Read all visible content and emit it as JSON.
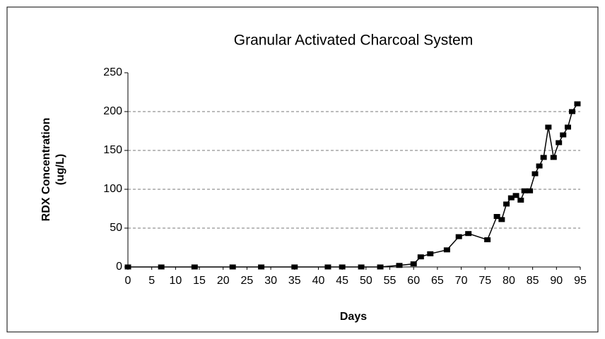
{
  "chart_data": {
    "type": "line",
    "title": "Granular Activated Charcoal System",
    "x_label": "Days",
    "y_label": [
      "RDX Concentration",
      "(ug/L)"
    ],
    "x": [
      0,
      7,
      14,
      22,
      28,
      35,
      42,
      45,
      49,
      53,
      57,
      60,
      61.5,
      63.5,
      67,
      69.5,
      71.5,
      75.5,
      77.5,
      78.5,
      79.5,
      80.5,
      81.5,
      82.5,
      83.3,
      84.4,
      85.5,
      86.4,
      87.3,
      88.3,
      89.4,
      90.5,
      91.4,
      92.4,
      93.3,
      94.4
    ],
    "series": [
      {
        "name": "RDX",
        "color": "#000000",
        "values": [
          0,
          0,
          0,
          0,
          0,
          0,
          0,
          0,
          0,
          0,
          2,
          4,
          13,
          17,
          22,
          39,
          43,
          35,
          65,
          61,
          81,
          89,
          92,
          86,
          98,
          98,
          120,
          130,
          141,
          180,
          141,
          160,
          170,
          180,
          200,
          210
        ]
      }
    ],
    "xlim": [
      0,
      95
    ],
    "xticks": [
      0,
      5,
      10,
      15,
      20,
      25,
      30,
      35,
      40,
      45,
      50,
      55,
      60,
      65,
      70,
      75,
      80,
      85,
      90,
      95
    ],
    "ylim": [
      0,
      250
    ],
    "yticks": [
      0,
      50,
      100,
      150,
      200,
      250
    ],
    "grid": true
  }
}
